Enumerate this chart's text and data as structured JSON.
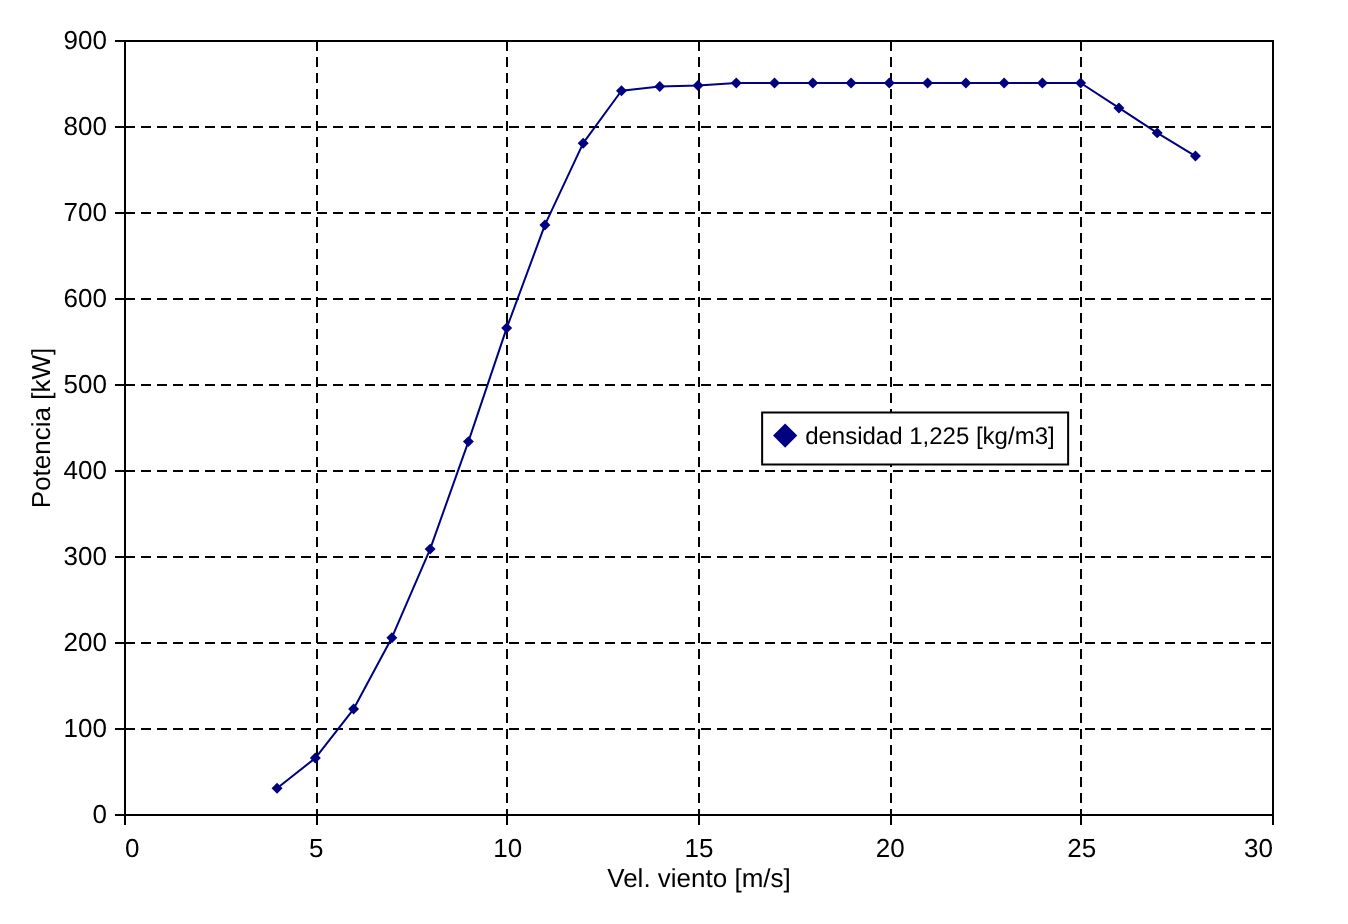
{
  "chart_data": {
    "type": "line",
    "xlabel": "Vel. viento [m/s]",
    "ylabel": "Potencia [kW]",
    "x": [
      4,
      5,
      6,
      7,
      8,
      9,
      10,
      11,
      12,
      13,
      14,
      15,
      16,
      17,
      18,
      19,
      20,
      21,
      22,
      23,
      24,
      25,
      26,
      27,
      28
    ],
    "series": [
      {
        "name": "densidad 1,225 [kg/m3]",
        "color": "#000080",
        "values": [
          30,
          65,
          122,
          205,
          308,
          433,
          565,
          685,
          780,
          841,
          846,
          847,
          850,
          850,
          850,
          850,
          850,
          850,
          850,
          850,
          850,
          850,
          821,
          792,
          765
        ]
      }
    ],
    "xlim": [
      0,
      30
    ],
    "xticks": [
      0,
      5,
      10,
      15,
      20,
      25,
      30
    ],
    "ylim": [
      0,
      900
    ],
    "yticks": [
      0,
      100,
      200,
      300,
      400,
      500,
      600,
      700,
      800,
      900
    ],
    "grid": true,
    "legend": "right",
    "marker": "diamond",
    "line_style": "solid"
  }
}
